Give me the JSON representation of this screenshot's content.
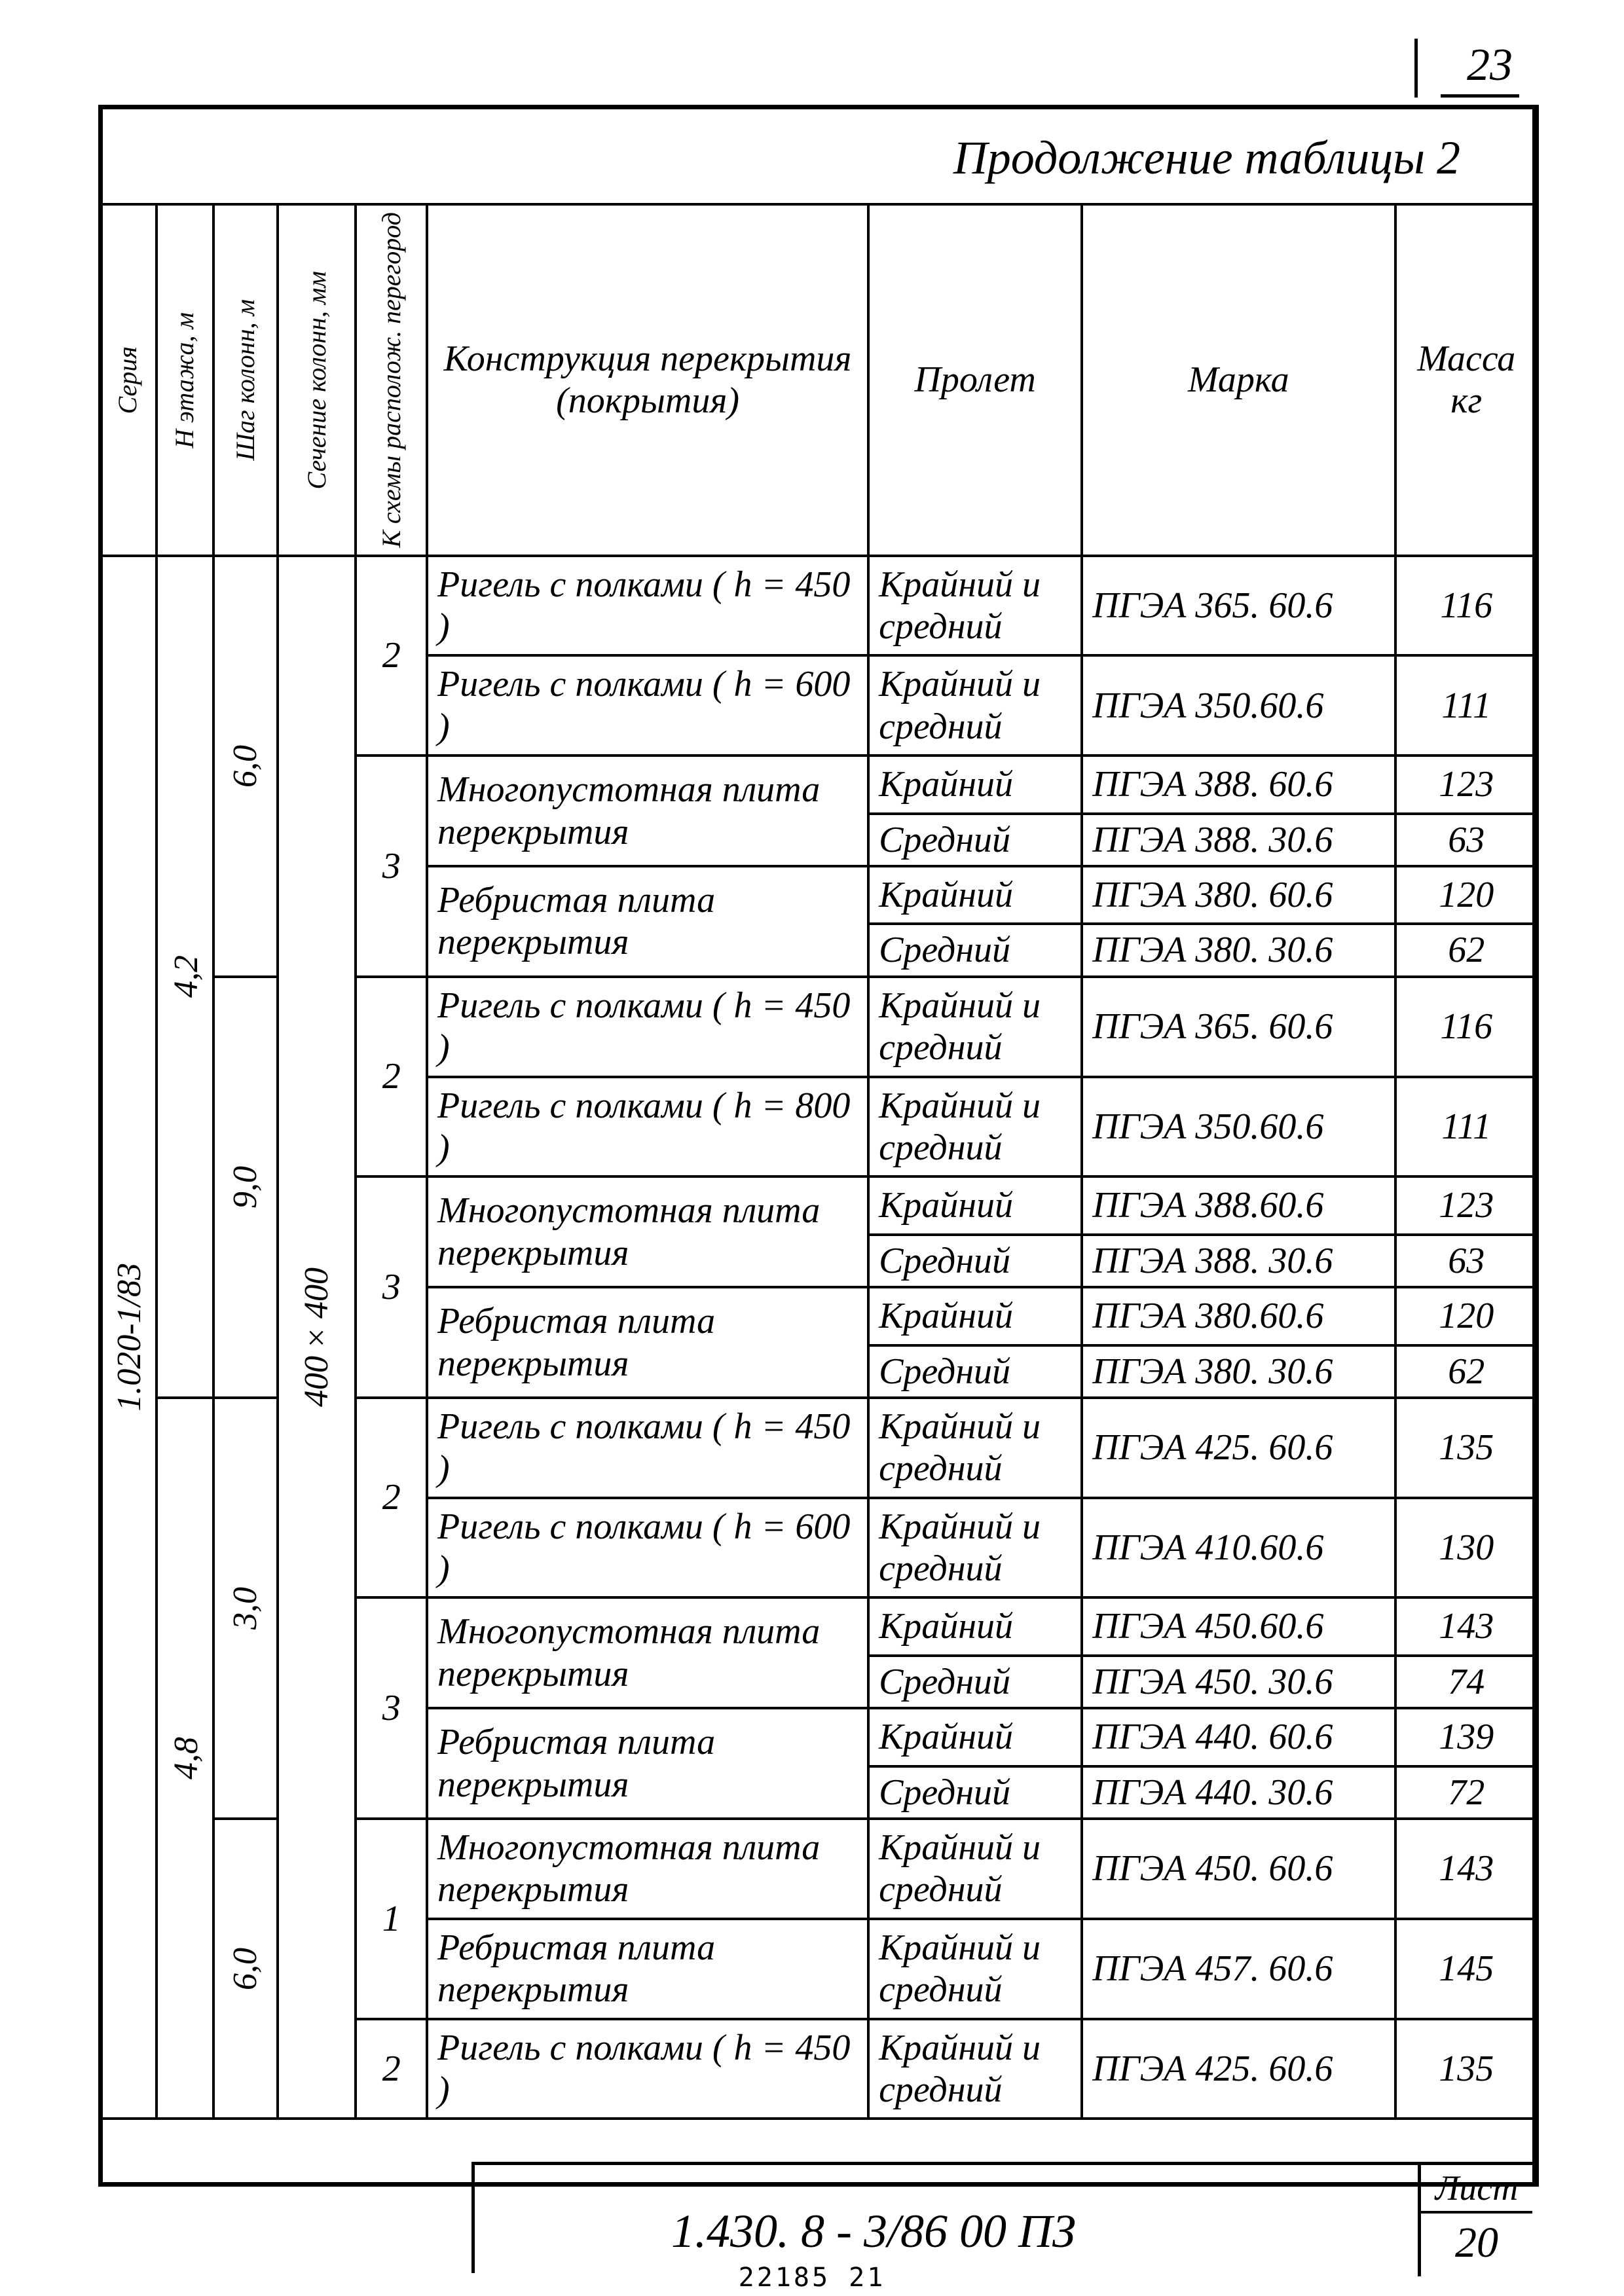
{
  "page_corner_number": "23",
  "continuation_title": "Продолжение таблицы 2",
  "headers": {
    "seria": "Серия",
    "etazh": "Н этажа, м",
    "shag": "Шаг колонн, м",
    "sech": "Сечение колонн, мм",
    "scheme": "К схемы располож. перегород",
    "constr": "Конструкция перекрытия (покрытия)",
    "span": "Пролет",
    "mark": "Марка",
    "mass": "Масса кг"
  },
  "seria_label": "1.020-1/83",
  "section_label": "400×400",
  "blocks": [
    {
      "etazh": "4,2",
      "groups": [
        {
          "shag": "6,0",
          "rows": [
            {
              "scheme": "",
              "constr": "Ригель с полками ( h = 450 )",
              "span": "Крайний и средний",
              "mark": "ПГЭА 365. 60.6",
              "mass": "116",
              "scheme_span": 2,
              "scheme_val": "2"
            },
            {
              "constr": "Ригель с полками ( h = 600 )",
              "span": "Крайний и средний",
              "mark": "ПГЭА 350.60.6",
              "mass": "111"
            },
            {
              "constr": "Многопустотная плита перекрытия",
              "span": "Крайний",
              "mark": "ПГЭА 388. 60.6",
              "mass": "123",
              "scheme_span": 4,
              "scheme_val": "3",
              "constr_span": 2
            },
            {
              "span": "Средний",
              "mark": "ПГЭА 388. 30.6",
              "mass": "63"
            },
            {
              "constr": "Ребристая плита перекрытия",
              "span": "Крайний",
              "mark": "ПГЭА 380. 60.6",
              "mass": "120",
              "constr_span": 2
            },
            {
              "span": "Средний",
              "mark": "ПГЭА 380. 30.6",
              "mass": "62"
            }
          ]
        },
        {
          "shag": "9,0",
          "rows": [
            {
              "constr": "Ригель с полками ( h = 450 )",
              "span": "Крайний и средний",
              "mark": "ПГЭА 365. 60.6",
              "mass": "116",
              "scheme_span": 2,
              "scheme_val": "2"
            },
            {
              "constr": "Ригель с полками ( h = 800 )",
              "span": "Крайний и средний",
              "mark": "ПГЭА 350.60.6",
              "mass": "111"
            },
            {
              "constr": "Многопустотная плита перекрытия",
              "span": "Крайний",
              "mark": "ПГЭА 388.60.6",
              "mass": "123",
              "scheme_span": 4,
              "scheme_val": "3",
              "constr_span": 2
            },
            {
              "span": "Средний",
              "mark": "ПГЭА 388. 30.6",
              "mass": "63"
            },
            {
              "constr": "Ребристая плита перекрытия",
              "span": "Крайний",
              "mark": "ПГЭА 380.60.6",
              "mass": "120",
              "constr_span": 2
            },
            {
              "span": "Средний",
              "mark": "ПГЭА 380. 30.6",
              "mass": "62"
            }
          ]
        }
      ]
    },
    {
      "etazh": "4,8",
      "groups": [
        {
          "shag": "3,0",
          "rows": [
            {
              "constr": "Ригель с полками ( h = 450 )",
              "span": "Крайний и средний",
              "mark": "ПГЭА 425. 60.6",
              "mass": "135",
              "scheme_span": 2,
              "scheme_val": "2"
            },
            {
              "constr": "Ригель с полками ( h = 600 )",
              "span": "Крайний и средний",
              "mark": "ПГЭА 410.60.6",
              "mass": "130"
            },
            {
              "constr": "Многопустотная плита перекрытия",
              "span": "Крайний",
              "mark": "ПГЭА 450.60.6",
              "mass": "143",
              "scheme_span": 4,
              "scheme_val": "3",
              "constr_span": 2
            },
            {
              "span": "Средний",
              "mark": "ПГЭА 450. 30.6",
              "mass": "74"
            },
            {
              "constr": "Ребристая плита перекрытия",
              "span": "Крайний",
              "mark": "ПГЭА 440. 60.6",
              "mass": "139",
              "constr_span": 2
            },
            {
              "span": "Средний",
              "mark": "ПГЭА 440. 30.6",
              "mass": "72"
            }
          ]
        },
        {
          "shag": "6,0",
          "rows": [
            {
              "constr": "Многопустотная плита перекрытия",
              "span": "Крайний и средний",
              "mark": "ПГЭА 450. 60.6",
              "mass": "143",
              "scheme_span": 2,
              "scheme_val": "1"
            },
            {
              "constr": "Ребристая плита перекрытия",
              "span": "Крайний и средний",
              "mark": "ПГЭА 457. 60.6",
              "mass": "145"
            },
            {
              "constr": "Ригель с полками ( h = 450 )",
              "span": "Крайний и средний",
              "mark": "ПГЭА 425. 60.6",
              "mass": "135",
              "scheme_span": 1,
              "scheme_val": "2"
            }
          ]
        }
      ]
    }
  ],
  "title_block": {
    "doc_number": "1.430. 8 - 3/86 00 ПЗ",
    "list_label": "Лист",
    "list_number": "20"
  },
  "footer_small": "22185   21"
}
